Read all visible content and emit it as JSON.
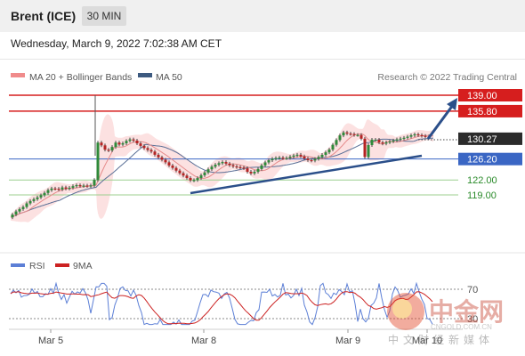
{
  "header": {
    "title": "Brent (ICE)",
    "timeframe": "30 MIN"
  },
  "timestamp": "Wednesday, March 9, 2022 7:02:38 AM CET",
  "legend": {
    "item1": "MA 20 + Bollinger Bands",
    "item2": "MA 50",
    "credit": "Research © 2022 Trading Central"
  },
  "rsi_legend": {
    "item1": "RSI",
    "item2": "9MA"
  },
  "colors": {
    "resistance": "#d61e1e",
    "support_blue": "#3a66c4",
    "support_green": "#2a8a2a",
    "bollinger": "#f5c6c6",
    "ma20": "#e07c7c",
    "ma50": "#3d5a80",
    "arrow": "#2b4f8a",
    "rsi": "#5c7fd6",
    "rsi_ma": "#cc2222",
    "watermark": "#e44a2a"
  },
  "watermark": {
    "brand": "中金网",
    "url": "CNGOLD.COM.CN",
    "tagline": "中文财经新媒体"
  },
  "chart_data": [
    {
      "type": "candlestick",
      "title": "Brent (ICE)",
      "ylim": [
        112,
        140
      ],
      "x_ticks": [
        "Mar 5",
        "Mar 8",
        "Mar 9",
        "Mar 10"
      ],
      "current_price": 130.27,
      "levels": [
        {
          "label": "139.00",
          "value": 139.0,
          "style": "resistance"
        },
        {
          "label": "135.80",
          "value": 135.8,
          "style": "resistance"
        },
        {
          "label": "130.27",
          "value": 130.27,
          "style": "current"
        },
        {
          "label": "126.20",
          "value": 126.2,
          "style": "support_blue"
        },
        {
          "label": "122.00",
          "value": 122.0,
          "style": "support_green"
        },
        {
          "label": "119.00",
          "value": 119.0,
          "style": "support_green"
        }
      ],
      "close_path": [
        [
          0,
          114.5
        ],
        [
          5,
          115.2
        ],
        [
          10,
          116.0
        ],
        [
          15,
          116.4
        ],
        [
          20,
          117.3
        ],
        [
          25,
          117.9
        ],
        [
          30,
          118.3
        ],
        [
          35,
          118.8
        ],
        [
          40,
          119.4
        ],
        [
          45,
          120.1
        ],
        [
          50,
          120.4
        ],
        [
          55,
          120.0
        ],
        [
          60,
          120.5
        ],
        [
          65,
          120.2
        ],
        [
          70,
          120.6
        ],
        [
          75,
          121.0
        ],
        [
          80,
          120.8
        ],
        [
          85,
          120.9
        ],
        [
          90,
          120.7
        ],
        [
          95,
          121.2
        ],
        [
          96,
          122.0
        ],
        [
          97,
          130.0
        ],
        [
          100,
          129.5
        ],
        [
          105,
          128.8
        ],
        [
          110,
          127.6
        ],
        [
          115,
          128.4
        ],
        [
          120,
          129.5
        ],
        [
          125,
          129.0
        ],
        [
          130,
          129.6
        ],
        [
          135,
          130.2
        ],
        [
          140,
          129.9
        ],
        [
          145,
          129.2
        ],
        [
          150,
          128.6
        ],
        [
          155,
          128.1
        ],
        [
          160,
          127.7
        ],
        [
          165,
          126.9
        ],
        [
          170,
          126.3
        ],
        [
          175,
          125.7
        ],
        [
          180,
          124.9
        ],
        [
          185,
          124.3
        ],
        [
          190,
          123.6
        ],
        [
          195,
          123.0
        ],
        [
          200,
          122.4
        ],
        [
          205,
          121.8
        ],
        [
          210,
          122.1
        ],
        [
          215,
          122.8
        ],
        [
          220,
          123.5
        ],
        [
          225,
          124.3
        ],
        [
          230,
          124.9
        ],
        [
          235,
          125.3
        ],
        [
          240,
          125.6
        ],
        [
          245,
          125.2
        ],
        [
          250,
          124.8
        ],
        [
          255,
          124.6
        ],
        [
          260,
          124.5
        ],
        [
          265,
          124.3
        ],
        [
          270,
          123.2
        ],
        [
          275,
          123.5
        ],
        [
          280,
          124.2
        ],
        [
          285,
          125.1
        ],
        [
          290,
          125.8
        ],
        [
          295,
          126.2
        ],
        [
          300,
          126.4
        ],
        [
          305,
          126.5
        ],
        [
          310,
          126.3
        ],
        [
          315,
          126.6
        ],
        [
          320,
          126.9
        ],
        [
          325,
          127.1
        ],
        [
          330,
          126.5
        ],
        [
          335,
          126.0
        ],
        [
          340,
          125.9
        ],
        [
          345,
          126.3
        ],
        [
          350,
          126.8
        ],
        [
          355,
          127.4
        ],
        [
          360,
          128.1
        ],
        [
          365,
          129.3
        ],
        [
          370,
          130.5
        ],
        [
          375,
          131.6
        ],
        [
          380,
          131.3
        ],
        [
          385,
          131.2
        ],
        [
          390,
          130.9
        ],
        [
          395,
          131.2
        ],
        [
          400,
          126.6
        ],
        [
          405,
          129.6
        ],
        [
          410,
          130.4
        ],
        [
          415,
          129.6
        ],
        [
          420,
          129.3
        ],
        [
          425,
          129.6
        ],
        [
          430,
          129.8
        ],
        [
          435,
          130.1
        ],
        [
          440,
          130.3
        ],
        [
          445,
          130.5
        ],
        [
          450,
          130.8
        ],
        [
          455,
          131.2
        ],
        [
          460,
          131.0
        ],
        [
          465,
          130.8
        ],
        [
          470,
          130.7
        ],
        [
          475,
          130.27
        ]
      ],
      "spike_high": 139.0
    },
    {
      "type": "line",
      "title": "RSI",
      "series": [
        {
          "name": "RSI"
        },
        {
          "name": "9MA"
        }
      ],
      "ylim": [
        20,
        80
      ],
      "levels": [
        {
          "label": "70",
          "value": 70
        },
        {
          "label": "30",
          "value": 30
        }
      ]
    }
  ]
}
